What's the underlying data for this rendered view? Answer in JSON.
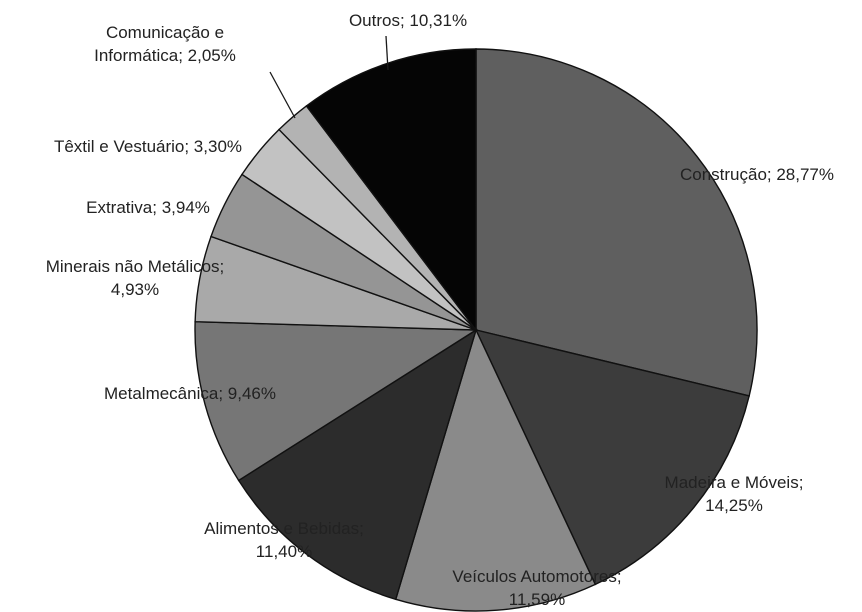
{
  "chart_data": {
    "type": "pie",
    "title": "",
    "slices": [
      {
        "key": "construcao",
        "label": "Construção",
        "value": 28.77,
        "display": "28,77%",
        "color": "#5f5f5f",
        "text_lines": [
          "Construção; 28,77%"
        ]
      },
      {
        "key": "madeira",
        "label": "Madeira e Móveis",
        "value": 14.25,
        "display": "14,25%",
        "color": "#3c3c3c",
        "text_lines": [
          "Madeira e Móveis;",
          "14,25%"
        ]
      },
      {
        "key": "veiculos",
        "label": "Veículos Automotores",
        "value": 11.59,
        "display": "11,59%",
        "color": "#8a8a8a",
        "text_lines": [
          "Veículos Automotores;",
          "11,59%"
        ]
      },
      {
        "key": "alimentos",
        "label": "Alimentos e Bebidas",
        "value": 11.4,
        "display": "11,40%",
        "color": "#2c2c2c",
        "text_lines": [
          "Alimentos e Bebidas;",
          "11,40%"
        ]
      },
      {
        "key": "metalmecanica",
        "label": "Metalmecânica",
        "value": 9.46,
        "display": "9,46%",
        "color": "#767676",
        "text_lines": [
          "Metalmecânica; 9,46%"
        ]
      },
      {
        "key": "minerais",
        "label": "Minerais não Metálicos",
        "value": 4.93,
        "display": "4,93%",
        "color": "#a9a9a9",
        "text_lines": [
          "Minerais não Metálicos;",
          "4,93%"
        ]
      },
      {
        "key": "extrativa",
        "label": "Extrativa",
        "value": 3.94,
        "display": "3,94%",
        "color": "#959595",
        "text_lines": [
          "Extrativa; 3,94%"
        ]
      },
      {
        "key": "textil",
        "label": "Têxtil e Vestuário",
        "value": 3.3,
        "display": "3,30%",
        "color": "#c2c2c2",
        "text_lines": [
          "Têxtil e Vestuário; 3,30%"
        ]
      },
      {
        "key": "comunicacao",
        "label": "Comunicação e Informática",
        "value": 2.05,
        "display": "2,05%",
        "color": "#b3b3b3",
        "text_lines": [
          "Comunicação e",
          "Informática; 2,05%"
        ]
      },
      {
        "key": "outros",
        "label": "Outros",
        "value": 10.31,
        "display": "10,31%",
        "color": "#050505",
        "text_lines": [
          "Outros; 10,31%"
        ]
      }
    ]
  }
}
